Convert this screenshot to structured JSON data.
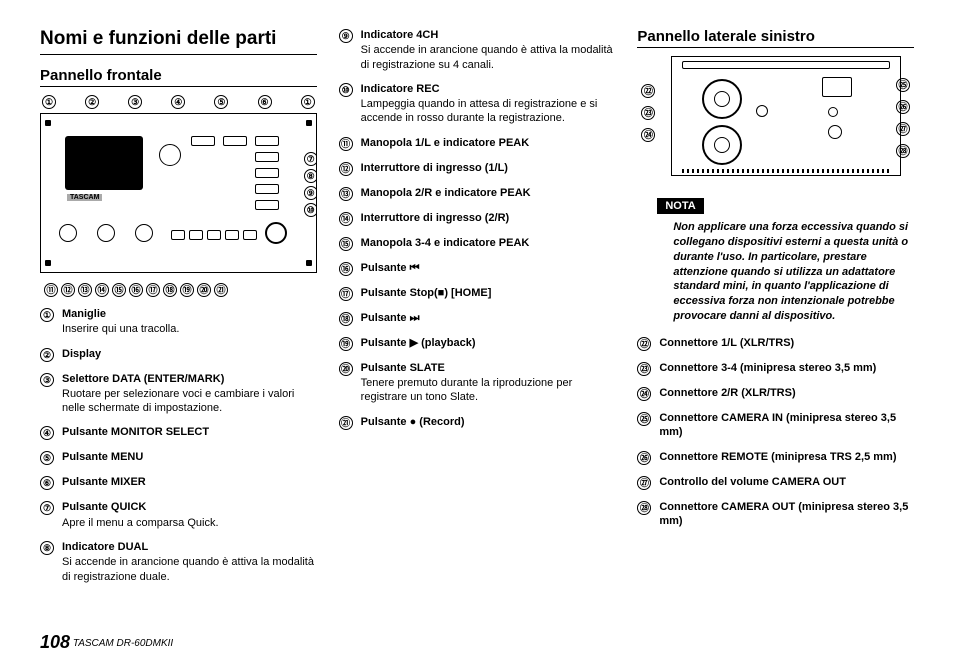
{
  "page": {
    "number": "108",
    "product": "TASCAM DR-60DMKII"
  },
  "col1": {
    "main_title": "Nomi e funzioni delle parti",
    "sub_title": "Pannello frontale",
    "top_callouts": [
      "①",
      "②",
      "③",
      "④",
      "⑤",
      "⑥",
      "①"
    ],
    "right_callouts": [
      "⑦",
      "⑧",
      "⑨",
      "⑩"
    ],
    "bottom_callouts": [
      "⑪",
      "⑫",
      "⑬",
      "⑭",
      "⑮",
      "⑯",
      "⑰",
      "⑱",
      "⑲",
      "⑳",
      "㉑"
    ],
    "brand": "TASCAM",
    "items": [
      {
        "n": "①",
        "t": "Maniglie",
        "d": "Inserire qui una tracolla."
      },
      {
        "n": "②",
        "t": "Display"
      },
      {
        "n": "③",
        "t": "Selettore DATA (ENTER/MARK)",
        "d": "Ruotare per selezionare voci e cambiare i valori nelle schermate di impostazione."
      },
      {
        "n": "④",
        "t": "Pulsante MONITOR SELECT"
      },
      {
        "n": "⑤",
        "t": "Pulsante MENU"
      },
      {
        "n": "⑥",
        "t": "Pulsante MIXER"
      },
      {
        "n": "⑦",
        "t": "Pulsante QUICK",
        "d": "Apre il menu a comparsa Quick."
      },
      {
        "n": "⑧",
        "t": "Indicatore DUAL",
        "d": "Si accende in arancione quando è attiva la modalità di registrazione duale."
      }
    ]
  },
  "col2": {
    "items": [
      {
        "n": "⑨",
        "t": "Indicatore 4CH",
        "d": "Si accende in arancione quando è attiva la modalità di registrazione su 4 canali."
      },
      {
        "n": "⑩",
        "t": "Indicatore REC",
        "d": "Lampeggia quando in attesa di registrazione e si accende in rosso durante la registrazione."
      },
      {
        "n": "⑪",
        "t": "Manopola 1/L e indicatore PEAK"
      },
      {
        "n": "⑫",
        "t": "Interruttore di ingresso (1/L)"
      },
      {
        "n": "⑬",
        "t": "Manopola 2/R e indicatore PEAK"
      },
      {
        "n": "⑭",
        "t": "Interruttore di ingresso (2/R)"
      },
      {
        "n": "⑮",
        "t": "Manopola 3-4 e indicatore PEAK"
      },
      {
        "n": "⑯",
        "t": "Pulsante ⏮"
      },
      {
        "n": "⑰",
        "t": "Pulsante Stop(■) [HOME]"
      },
      {
        "n": "⑱",
        "t": "Pulsante ⏭"
      },
      {
        "n": "⑲",
        "t": "Pulsante ▶ (playback)"
      },
      {
        "n": "⑳",
        "t": "Pulsante SLATE",
        "d": "Tenere premuto durante la riproduzione per registrare un tono Slate."
      },
      {
        "n": "㉑",
        "t": "Pulsante ● (Record)"
      }
    ]
  },
  "col3": {
    "sub_title": "Pannello laterale sinistro",
    "left_callouts": [
      "㉒",
      "㉓",
      "㉔"
    ],
    "right_callouts": [
      "㉕",
      "㉖",
      "㉗",
      "㉘"
    ],
    "nota_label": "NOTA",
    "nota_text": "Non applicare una forza eccessiva quando si collegano dispositivi esterni a questa unità o durante l'uso. In particolare, prestare attenzione quando si utilizza un adattatore standard mini, in quanto l'applicazione di eccessiva forza non intenzionale potrebbe provocare danni al dispositivo.",
    "items": [
      {
        "n": "㉒",
        "t": "Connettore 1/L (XLR/TRS)"
      },
      {
        "n": "㉓",
        "t": "Connettore 3-4 (minipresa stereo 3,5 mm)"
      },
      {
        "n": "㉔",
        "t": "Connettore 2/R (XLR/TRS)"
      },
      {
        "n": "㉕",
        "t": "Connettore CAMERA IN (minipresa stereo 3,5 mm)"
      },
      {
        "n": "㉖",
        "t": "Connettore REMOTE (minipresa TRS 2,5 mm)"
      },
      {
        "n": "㉗",
        "t": "Controllo del volume CAMERA OUT"
      },
      {
        "n": "㉘",
        "t": "Connettore CAMERA OUT (minipresa stereo 3,5 mm)"
      }
    ]
  }
}
